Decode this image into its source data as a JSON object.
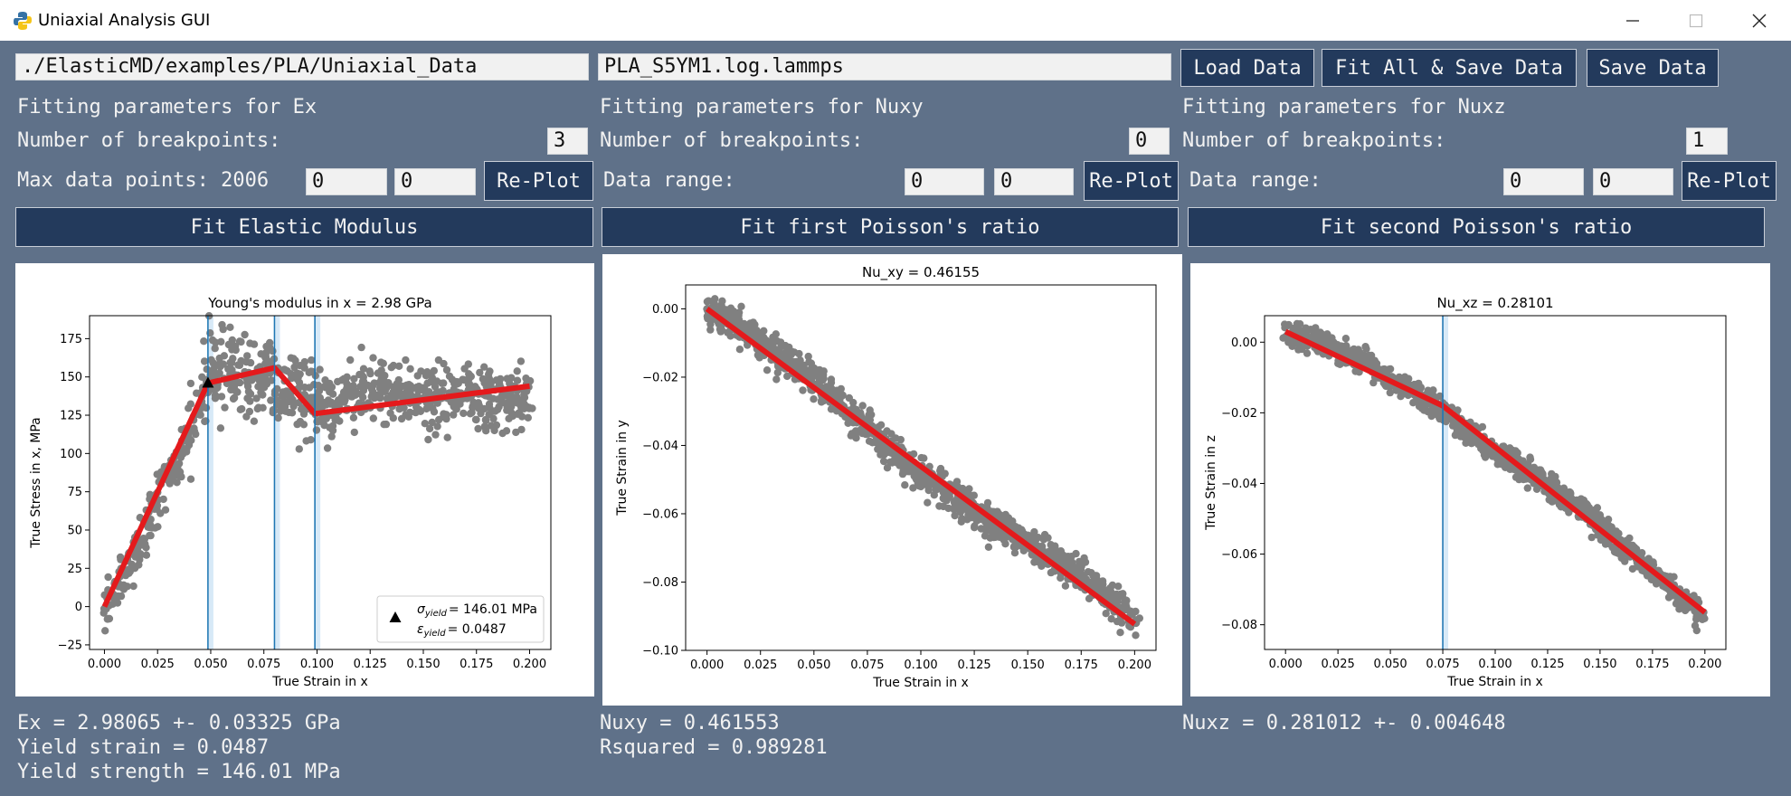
{
  "window": {
    "title": "Uniaxial Analysis GUI"
  },
  "toolbar": {
    "path_value": "./ElasticMD/examples/PLA/Uniaxial_Data",
    "file_value": "PLA_S5YM1.log.lammps",
    "load_label": "Load Data",
    "fit_all_label": "Fit All & Save Data",
    "save_label": "Save Data"
  },
  "ex": {
    "header": "Fitting parameters for Ex",
    "breakpoints_label": "Number of breakpoints:",
    "breakpoints_value": "3",
    "range_label": "Max data points: 2006",
    "range_min": "0",
    "range_max": "0",
    "replot_label": "Re-Plot",
    "fit_label": "Fit Elastic Modulus",
    "result_1": "Ex = 2.98065 +- 0.03325 GPa",
    "result_2": "Yield strain = 0.0487",
    "result_3": "Yield strength = 146.01 MPa"
  },
  "nuxy": {
    "header": "Fitting parameters for Nuxy",
    "breakpoints_label": "Number of breakpoints:",
    "breakpoints_value": "0",
    "range_label": "Data range:",
    "range_min": "0",
    "range_max": "0",
    "replot_label": "Re-Plot",
    "fit_label": "Fit first Poisson's ratio",
    "result_1": "Nuxy = 0.461553",
    "result_2": "Rsquared = 0.989281"
  },
  "nuxz": {
    "header": "Fitting parameters for Nuxz",
    "breakpoints_label": "Number of breakpoints:",
    "breakpoints_value": "1",
    "range_label": "Data range:",
    "range_min": "0",
    "range_max": "0",
    "replot_label": "Re-Plot",
    "fit_label": "Fit second Poisson's ratio",
    "result_1": "Nuxz = 0.281012 +- 0.004648"
  },
  "colors": {
    "scatter": "#808080",
    "fit": "#e41a1c",
    "breakpoint": "#1f77b4",
    "button": "#233a5c",
    "background": "#5f7189"
  },
  "chart_data": [
    {
      "type": "scatter",
      "title": "Young's modulus in x = 2.98 GPa",
      "xlabel": "True Strain in x",
      "ylabel": "True Stress in x, MPa",
      "xlim": [
        -0.007,
        0.21
      ],
      "ylim": [
        -28,
        190
      ],
      "xticks": [
        "0.000",
        "0.025",
        "0.050",
        "0.075",
        "0.100",
        "0.125",
        "0.150",
        "0.175",
        "0.200"
      ],
      "yticks": [
        "175",
        "150",
        "125",
        "100",
        "75",
        "50",
        "25",
        "0",
        "−25"
      ],
      "fit_line": {
        "x": [
          0.0,
          0.0487,
          0.08,
          0.099,
          0.2
        ],
        "y": [
          0,
          146.01,
          156,
          126,
          144
        ]
      },
      "breakpoints": [
        0.0487,
        0.08,
        0.099
      ],
      "yield_point": {
        "x": 0.0487,
        "y": 146.01
      },
      "legend": {
        "placement": "lower-right",
        "line_1": "= 146.01 MPa",
        "line_2": "= 0.0487",
        "sym_1": "σ",
        "sub_1": "yield",
        "sym_2": "ε",
        "sub_2": "yield"
      }
    },
    {
      "type": "scatter",
      "title": "Nu_xy = 0.46155",
      "xlabel": "True Strain in x",
      "ylabel": "True Strain in y",
      "xlim": [
        -0.01,
        0.21
      ],
      "ylim": [
        -0.1,
        0.007
      ],
      "xticks": [
        "0.000",
        "0.025",
        "0.050",
        "0.075",
        "0.100",
        "0.125",
        "0.150",
        "0.175",
        "0.200"
      ],
      "yticks": [
        "0.00",
        "−0.02",
        "−0.04",
        "−0.06",
        "−0.08",
        "−0.10"
      ],
      "fit_line": {
        "x": [
          0.0,
          0.2
        ],
        "y": [
          0.0,
          -0.0923
        ]
      },
      "breakpoints": []
    },
    {
      "type": "scatter",
      "title": "Nu_xz = 0.28101",
      "xlabel": "True Strain in x",
      "ylabel": "True Strain in z",
      "xlim": [
        -0.01,
        0.21
      ],
      "ylim": [
        -0.087,
        0.0075
      ],
      "xticks": [
        "0.000",
        "0.025",
        "0.050",
        "0.075",
        "0.100",
        "0.125",
        "0.150",
        "0.175",
        "0.200"
      ],
      "yticks": [
        "0.00",
        "−0.02",
        "−0.04",
        "−0.06",
        "−0.08"
      ],
      "fit_line": {
        "x": [
          0.0,
          0.075,
          0.2
        ],
        "y": [
          0.003,
          -0.018,
          -0.0765
        ]
      },
      "breakpoints": [
        0.075
      ]
    }
  ]
}
